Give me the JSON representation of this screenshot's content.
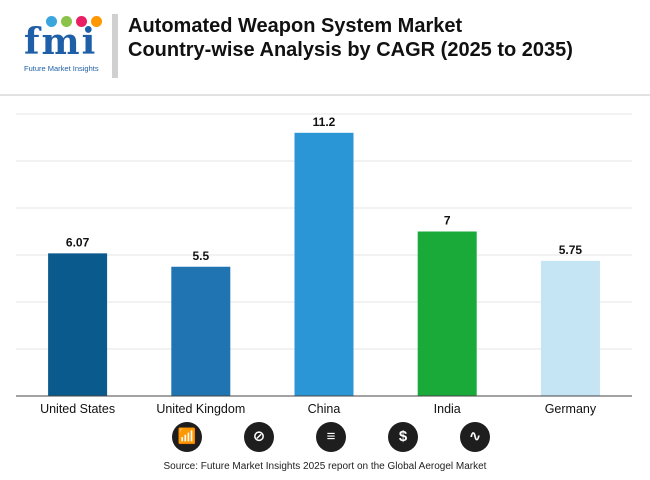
{
  "header": {
    "logo_text": "fmi",
    "logo_subtitle": "Future Market Insights",
    "title_line1": "Automated Weapon System Market",
    "title_line2": "Country-wise Analysis by CAGR (2025 to 2035)"
  },
  "colors": {
    "logo_dots": [
      "#3aa6dd",
      "#8bc34a",
      "#e91e63",
      "#ff9800"
    ],
    "title": "#111111"
  },
  "chart_data": {
    "type": "bar",
    "title": "Automated Weapon System Market Country-wise Analysis by CAGR (2025 to 2035)",
    "xlabel": "",
    "ylabel": "",
    "ylim": [
      0,
      12
    ],
    "grid": true,
    "categories": [
      "United States",
      "United Kingdom",
      "China",
      "India",
      "Germany"
    ],
    "values": [
      6.07,
      5.5,
      11.2,
      7,
      5.75
    ],
    "value_labels": [
      "6.07",
      "5.5",
      "11.2",
      "7",
      "5.75"
    ],
    "bar_colors": [
      "#0b5a8e",
      "#1f74b1",
      "#2b96d6",
      "#1aaa3a",
      "#c5e4f4"
    ]
  },
  "footer": {
    "icons": [
      "bar-chart-icon",
      "magnifier-chart-icon",
      "report-icon",
      "dollar-icon",
      "line-chart-icon"
    ],
    "icon_glyphs": [
      "📶",
      "⊘",
      "≡",
      "$",
      "∿"
    ],
    "source": "Source: Future Market Insights 2025 report on the Global Aerogel Market"
  }
}
